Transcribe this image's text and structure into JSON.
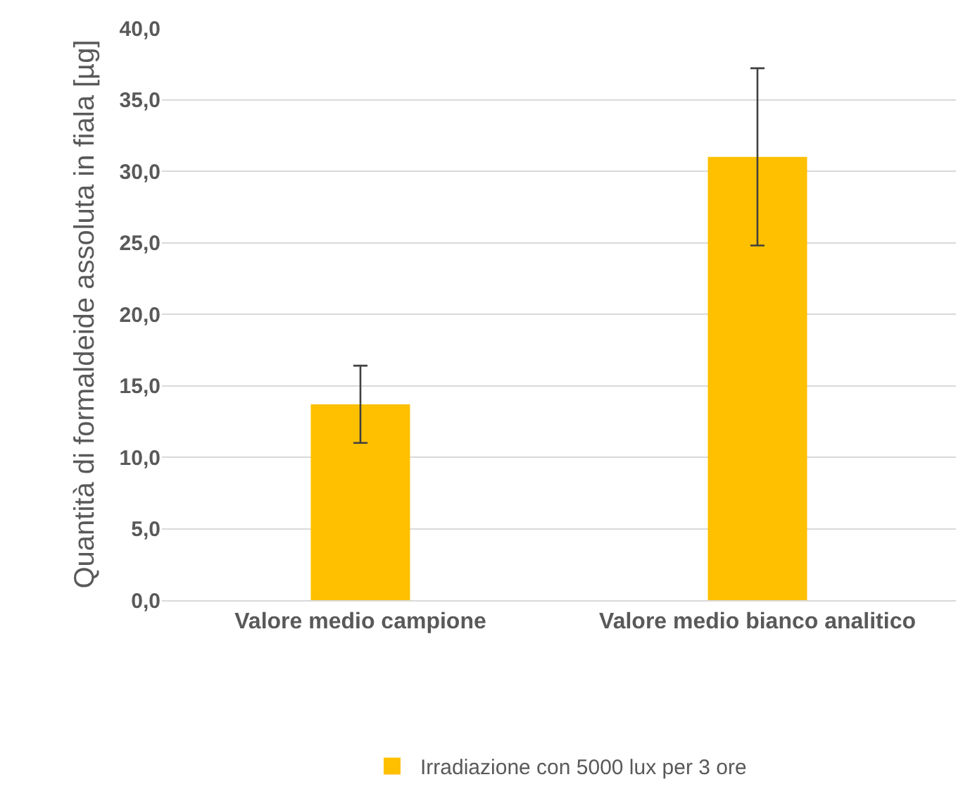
{
  "chart_data": {
    "type": "bar",
    "ylabel": "Quantità di formaldeide assoluta in fiala [µg]",
    "categories": [
      "Valore medio campione",
      "Valore medio bianco analitico"
    ],
    "series": [
      {
        "name": "Irradiazione con 5000 lux per 3 ore",
        "color": "#ffc000",
        "values": [
          13.7,
          31.0
        ],
        "errors": [
          [
            11.0,
            16.4
          ],
          [
            24.8,
            37.2
          ]
        ]
      }
    ],
    "ylim": [
      0,
      40
    ],
    "yticks": [
      {
        "value": 0,
        "label": "0,0"
      },
      {
        "value": 5,
        "label": "5,0"
      },
      {
        "value": 10,
        "label": "10,0"
      },
      {
        "value": 15,
        "label": "15,0"
      },
      {
        "value": 20,
        "label": "20,0"
      },
      {
        "value": 25,
        "label": "25,0"
      },
      {
        "value": 30,
        "label": "30,0"
      },
      {
        "value": 35,
        "label": "35,0"
      },
      {
        "value": 40,
        "label": "40,0"
      }
    ],
    "grid": "y",
    "legend": "bottom"
  }
}
